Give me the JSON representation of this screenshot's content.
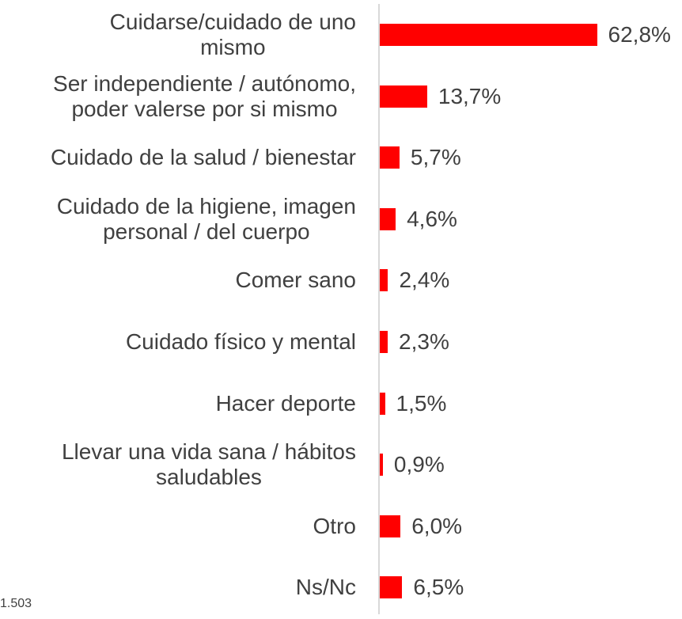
{
  "chart_data": {
    "type": "barh",
    "categories": [
      "Cuidarse/cuidado de uno\nmismo",
      "Ser independiente / autónomo,\npoder valerse por si mismo",
      "Cuidado de la salud / bienestar",
      "Cuidado de la higiene, imagen\npersonal / del cuerpo",
      "Comer sano",
      "Cuidado físico y mental",
      "Hacer deporte",
      "Llevar una vida sana / hábitos\nsaludables",
      "Otro",
      "Ns/Nc"
    ],
    "values": [
      62.8,
      13.7,
      5.7,
      4.6,
      2.4,
      2.3,
      1.5,
      0.9,
      6.0,
      6.5
    ],
    "value_labels": [
      "62,8%",
      "13,7%",
      "5,7%",
      "4,6%",
      "2,4%",
      "2,3%",
      "1,5%",
      "0,9%",
      "6,0%",
      "6,5%"
    ],
    "color": "#ff0000",
    "xlim": [
      0,
      70
    ],
    "note": "1.503"
  }
}
